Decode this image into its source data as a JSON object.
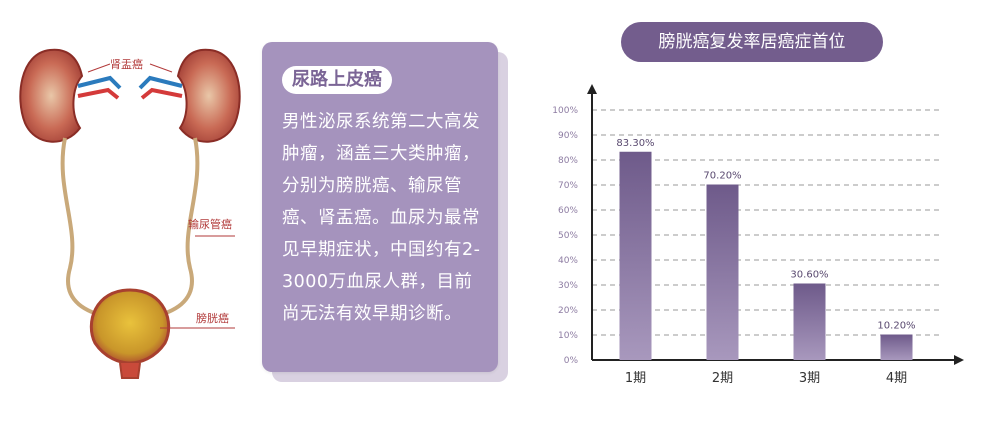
{
  "anatomy": {
    "label_kidney": "肾盂癌",
    "label_ureter": "输尿管癌",
    "label_bladder": "膀胱癌"
  },
  "info_card": {
    "tag": "尿路上皮癌",
    "body": "男性泌尿系统第二大高发肿瘤，涵盖三大类肿瘤，分别为膀胱癌、输尿管癌、肾盂癌。血尿为最常见早期症状，中国约有2-3000万血尿人群，目前尚无法有效早期诊断。"
  },
  "chart_data": {
    "type": "bar",
    "title": "膀胱癌复发率居癌症首位",
    "categories": [
      "1期",
      "2期",
      "3期",
      "4期"
    ],
    "values": [
      83.3,
      70.2,
      30.6,
      10.2
    ],
    "value_labels": [
      "83.30%",
      "70.20%",
      "30.60%",
      "10.20%"
    ],
    "y_ticks": [
      "0%",
      "10%",
      "20%",
      "30%",
      "40%",
      "50%",
      "60%",
      "70%",
      "80%",
      "90%",
      "100%"
    ],
    "ylim": [
      0,
      100
    ],
    "xlabel": "",
    "ylabel": "",
    "grid": true,
    "colors": {
      "bar_top": "#6e5a8a",
      "bar_bottom": "#a898bd",
      "grid": "#9a9a9a",
      "axis": "#222222"
    }
  }
}
